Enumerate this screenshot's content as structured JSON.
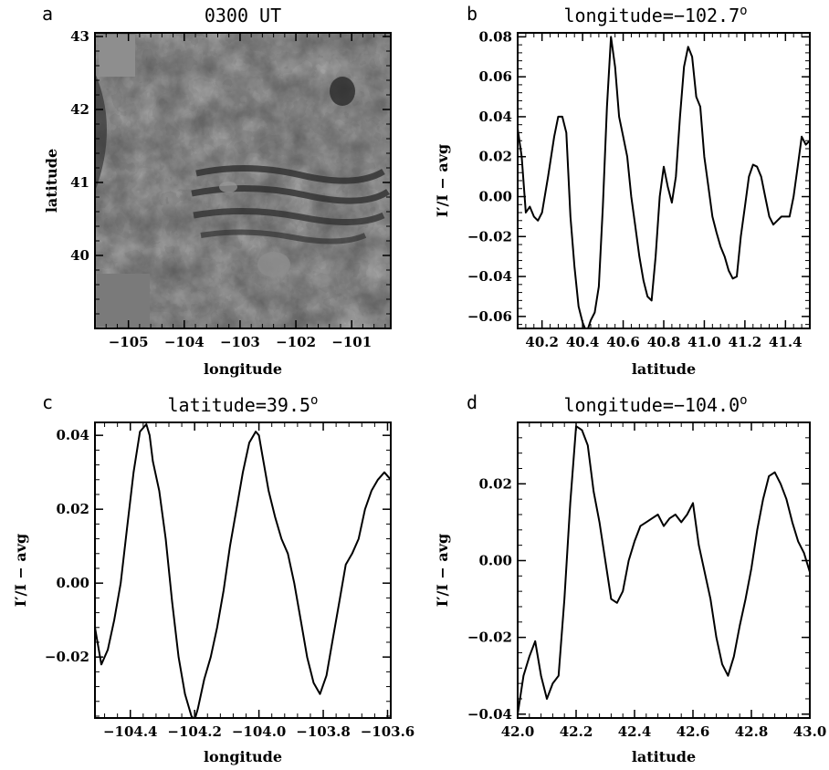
{
  "chart_data": [
    {
      "id": "a",
      "panel_letter": "a",
      "type": "heatmap",
      "title": "0300 UT",
      "xlabel": "longitude",
      "ylabel": "latitude",
      "xlim": [
        -105.6,
        -100.3
      ],
      "ylim": [
        39.0,
        43.05
      ],
      "xticks": [
        -105,
        -104,
        -103,
        -102,
        -101
      ],
      "yticks": [
        40,
        41,
        42,
        43
      ],
      "colormap": "grayscale"
    },
    {
      "id": "b",
      "panel_letter": "b",
      "type": "line",
      "title": "longitude=−102.7",
      "title_suffix": "o",
      "xlabel": "latitude",
      "ylabel": "I′/I − avg",
      "xlim": [
        40.08,
        41.52
      ],
      "ylim": [
        -0.066,
        0.082
      ],
      "xticks": [
        40.2,
        40.4,
        40.6,
        40.8,
        41.0,
        41.2,
        41.4
      ],
      "xtick_labels": [
        "40.2",
        "40.4",
        "40.6",
        "40.8",
        "41.0",
        "41.2",
        "41.4"
      ],
      "yticks": [
        -0.06,
        -0.04,
        -0.02,
        0.0,
        0.02,
        0.04,
        0.06,
        0.08
      ],
      "ytick_labels": [
        "−0.06",
        "−0.04",
        "−0.02",
        "0.00",
        "0.02",
        "0.04",
        "0.06",
        "0.08"
      ],
      "x": [
        40.08,
        40.1,
        40.12,
        40.14,
        40.16,
        40.18,
        40.2,
        40.23,
        40.26,
        40.28,
        40.3,
        40.32,
        40.34,
        40.36,
        40.38,
        40.4,
        40.42,
        40.44,
        40.46,
        40.48,
        40.5,
        40.52,
        40.54,
        40.56,
        40.58,
        40.6,
        40.62,
        40.64,
        40.66,
        40.68,
        40.7,
        40.72,
        40.74,
        40.76,
        40.78,
        40.8,
        40.82,
        40.84,
        40.86,
        40.88,
        40.9,
        40.92,
        40.94,
        40.96,
        40.98,
        41.0,
        41.02,
        41.04,
        41.06,
        41.08,
        41.1,
        41.12,
        41.14,
        41.16,
        41.18,
        41.2,
        41.22,
        41.24,
        41.26,
        41.28,
        41.3,
        41.32,
        41.34,
        41.36,
        41.38,
        41.4,
        41.42,
        41.44,
        41.46,
        41.48,
        41.5,
        41.52
      ],
      "y": [
        0.034,
        0.02,
        -0.008,
        -0.005,
        -0.01,
        -0.012,
        -0.008,
        0.01,
        0.03,
        0.04,
        0.04,
        0.032,
        -0.01,
        -0.035,
        -0.055,
        -0.063,
        -0.068,
        -0.062,
        -0.058,
        -0.045,
        -0.005,
        0.045,
        0.08,
        0.065,
        0.04,
        0.03,
        0.02,
        0.0,
        -0.015,
        -0.03,
        -0.042,
        -0.05,
        -0.052,
        -0.03,
        0.0,
        0.015,
        0.005,
        -0.003,
        0.01,
        0.04,
        0.065,
        0.075,
        0.07,
        0.05,
        0.045,
        0.02,
        0.005,
        -0.01,
        -0.018,
        -0.025,
        -0.03,
        -0.037,
        -0.041,
        -0.04,
        -0.02,
        -0.005,
        0.01,
        0.016,
        0.015,
        0.01,
        0.0,
        -0.01,
        -0.014,
        -0.012,
        -0.01,
        -0.01,
        -0.01,
        0.0,
        0.015,
        0.03,
        0.026,
        0.028
      ]
    },
    {
      "id": "c",
      "panel_letter": "c",
      "type": "line",
      "title": "latitude=39.5",
      "title_suffix": "o",
      "xlabel": "longitude",
      "ylabel": "I′/I − avg",
      "xlim": [
        -104.51,
        -103.59
      ],
      "ylim": [
        -0.0365,
        0.0435
      ],
      "xticks": [
        -104.4,
        -104.2,
        -104.0,
        -103.8,
        -103.6
      ],
      "xtick_labels": [
        "−104.4",
        "−104.2",
        "−104.0",
        "−103.8",
        "−103.6"
      ],
      "yticks": [
        -0.02,
        0.0,
        0.02,
        0.04
      ],
      "ytick_labels": [
        "−0.02",
        "0.00",
        "0.02",
        "0.04"
      ],
      "x": [
        -104.51,
        -104.49,
        -104.47,
        -104.45,
        -104.43,
        -104.41,
        -104.39,
        -104.37,
        -104.35,
        -104.34,
        -104.33,
        -104.31,
        -104.29,
        -104.27,
        -104.25,
        -104.23,
        -104.21,
        -104.2,
        -104.19,
        -104.17,
        -104.15,
        -104.13,
        -104.11,
        -104.09,
        -104.07,
        -104.05,
        -104.03,
        -104.01,
        -104.0,
        -103.99,
        -103.97,
        -103.95,
        -103.93,
        -103.91,
        -103.89,
        -103.87,
        -103.85,
        -103.83,
        -103.81,
        -103.79,
        -103.77,
        -103.75,
        -103.73,
        -103.71,
        -103.69,
        -103.67,
        -103.65,
        -103.63,
        -103.61,
        -103.59
      ],
      "y": [
        -0.012,
        -0.022,
        -0.018,
        -0.01,
        0.0,
        0.015,
        0.03,
        0.041,
        0.043,
        0.04,
        0.033,
        0.025,
        0.012,
        -0.005,
        -0.02,
        -0.03,
        -0.036,
        -0.037,
        -0.034,
        -0.026,
        -0.02,
        -0.012,
        -0.002,
        0.01,
        0.02,
        0.03,
        0.038,
        0.041,
        0.04,
        0.035,
        0.025,
        0.018,
        0.012,
        0.008,
        0.0,
        -0.01,
        -0.02,
        -0.027,
        -0.03,
        -0.025,
        -0.015,
        -0.005,
        0.005,
        0.008,
        0.012,
        0.02,
        0.025,
        0.028,
        0.03,
        0.028
      ]
    },
    {
      "id": "d",
      "panel_letter": "d",
      "type": "line",
      "title": "longitude=−104.0",
      "title_suffix": "o",
      "xlabel": "latitude",
      "ylabel": "I′/I − avg",
      "xlim": [
        42.0,
        43.0
      ],
      "ylim": [
        -0.041,
        0.036
      ],
      "xticks": [
        42.0,
        42.2,
        42.4,
        42.6,
        42.8,
        43.0
      ],
      "xtick_labels": [
        "42.0",
        "42.2",
        "42.4",
        "42.6",
        "42.8",
        "43.0"
      ],
      "yticks": [
        -0.04,
        -0.02,
        0.0,
        0.02
      ],
      "ytick_labels": [
        "−0.04",
        "−0.02",
        "0.00",
        "0.02"
      ],
      "x": [
        42.0,
        42.02,
        42.04,
        42.06,
        42.08,
        42.1,
        42.12,
        42.14,
        42.16,
        42.18,
        42.2,
        42.22,
        42.24,
        42.26,
        42.28,
        42.3,
        42.32,
        42.34,
        42.36,
        42.38,
        42.4,
        42.42,
        42.44,
        42.46,
        42.48,
        42.5,
        42.52,
        42.54,
        42.56,
        42.58,
        42.6,
        42.62,
        42.64,
        42.66,
        42.68,
        42.7,
        42.72,
        42.74,
        42.76,
        42.78,
        42.8,
        42.82,
        42.84,
        42.86,
        42.88,
        42.9,
        42.92,
        42.94,
        42.96,
        42.98,
        43.0
      ],
      "y": [
        -0.04,
        -0.03,
        -0.025,
        -0.021,
        -0.03,
        -0.036,
        -0.032,
        -0.03,
        -0.01,
        0.015,
        0.035,
        0.034,
        0.03,
        0.018,
        0.01,
        0.0,
        -0.01,
        -0.011,
        -0.008,
        0.0,
        0.005,
        0.009,
        0.01,
        0.011,
        0.012,
        0.009,
        0.011,
        0.012,
        0.01,
        0.012,
        0.015,
        0.004,
        -0.003,
        -0.01,
        -0.02,
        -0.027,
        -0.03,
        -0.025,
        -0.017,
        -0.01,
        -0.002,
        0.008,
        0.016,
        0.022,
        0.023,
        0.02,
        0.016,
        0.01,
        0.005,
        0.002,
        -0.003
      ]
    }
  ]
}
